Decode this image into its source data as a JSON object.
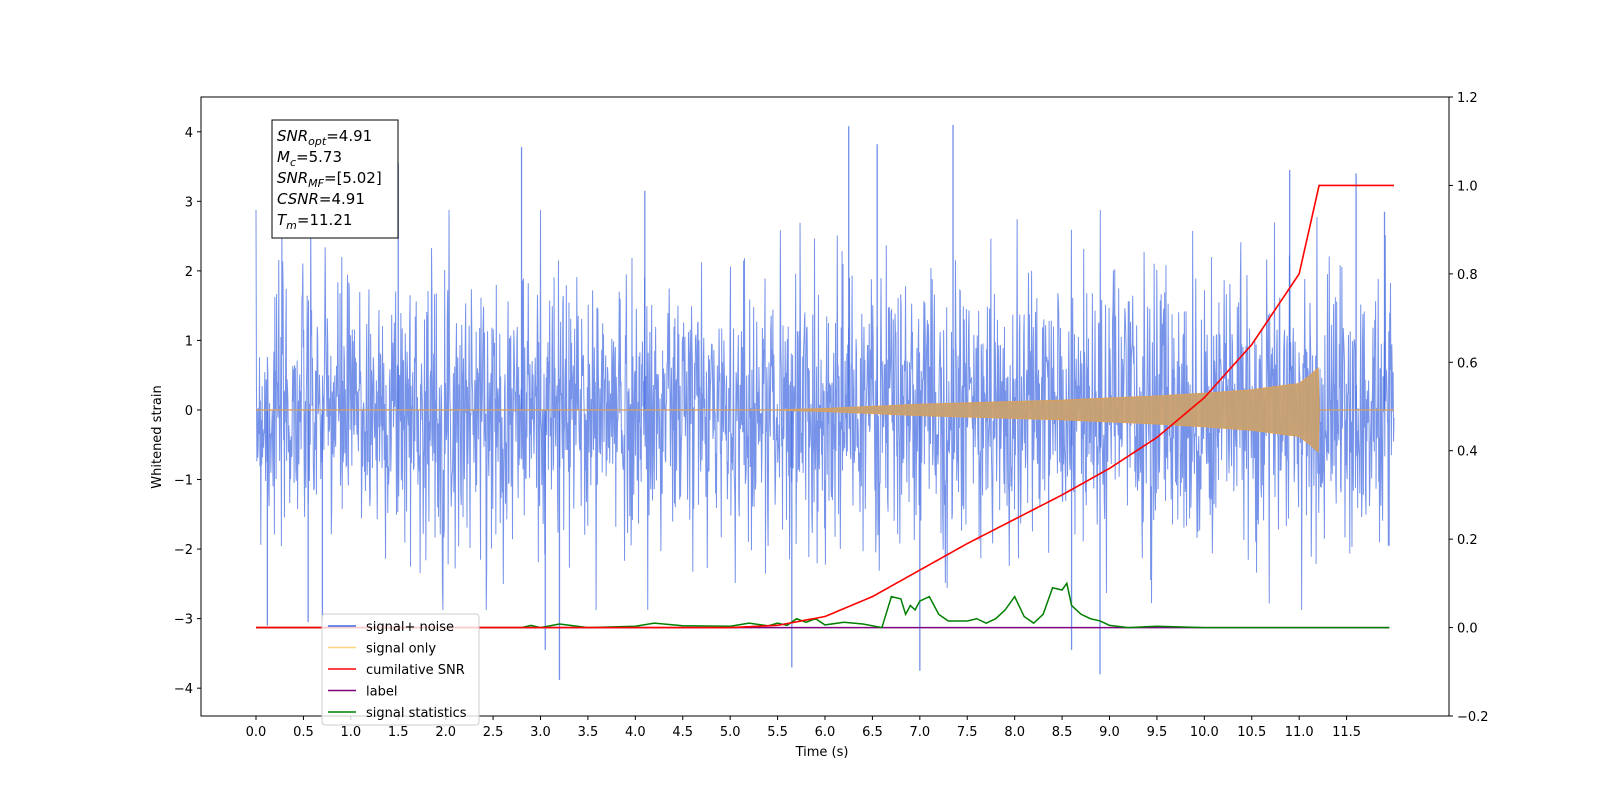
{
  "chart_data": {
    "type": "line",
    "xlabel": "Time (s)",
    "ylabel": "Whitened strain",
    "xlim": [
      -0.58,
      12.58
    ],
    "ylim": [
      -4.4,
      4.5
    ],
    "y2lim": [
      -0.2,
      1.2
    ],
    "xticks": [
      "0.0",
      "0.5",
      "1.0",
      "1.5",
      "2.0",
      "2.5",
      "3.0",
      "3.5",
      "4.0",
      "4.5",
      "5.0",
      "5.5",
      "6.0",
      "6.5",
      "7.0",
      "7.5",
      "8.0",
      "8.5",
      "9.0",
      "9.5",
      "10.0",
      "10.5",
      "11.0",
      "11.5"
    ],
    "yticks": [
      "4",
      "3",
      "2",
      "1",
      "0",
      "−1",
      "−2",
      "−3",
      "−4"
    ],
    "y2ticks": [
      "1.2",
      "1.0",
      "0.8",
      "0.6",
      "0.4",
      "0.2",
      "0.0",
      "−0.2"
    ],
    "info_box": {
      "lines": [
        {
          "main": "SNR",
          "sub": "opt",
          "rest": "=4.91"
        },
        {
          "main": "M",
          "sub": "c",
          "rest": "=5.73"
        },
        {
          "main": "SNR",
          "sub": "MF",
          "rest": "=[5.02]"
        },
        {
          "main": "CSNR",
          "sub": "",
          "rest": "=4.91"
        },
        {
          "main": "T",
          "sub": "m",
          "rest": "=11.21"
        }
      ]
    },
    "legend": {
      "placement": "lower-left",
      "entries": [
        {
          "label": "signal+ noise",
          "color": "#4169e1"
        },
        {
          "label": "signal only",
          "color": "#ffa500"
        },
        {
          "label": "cumilative SNR",
          "color": "#ff0000"
        },
        {
          "label": "label",
          "color": "#800080"
        },
        {
          "label": "signal statistics",
          "color": "#008000"
        }
      ]
    },
    "series": [
      {
        "name": "signal+ noise",
        "axis": "left",
        "color": "#4169e1",
        "t_range": [
          0.0,
          12.0
        ],
        "envelope_typical": 2.5,
        "extreme_values": [
          [
            0.12,
            -3.1
          ],
          [
            0.55,
            -3.05
          ],
          [
            0.7,
            -3.0
          ],
          [
            1.5,
            3.55
          ],
          [
            2.8,
            3.78
          ],
          [
            3.05,
            -3.45
          ],
          [
            3.2,
            -3.88
          ],
          [
            4.1,
            3.15
          ],
          [
            5.65,
            -3.7
          ],
          [
            6.25,
            4.08
          ],
          [
            6.55,
            3.82
          ],
          [
            7.0,
            -3.75
          ],
          [
            7.35,
            4.1
          ],
          [
            8.6,
            -3.45
          ],
          [
            8.9,
            -3.8
          ],
          [
            10.9,
            3.45
          ],
          [
            11.6,
            3.4
          ],
          [
            11.9,
            2.85
          ]
        ]
      },
      {
        "name": "signal only",
        "axis": "left",
        "color": "#ffa500",
        "t": [
          0.0,
          5.5,
          6.0,
          6.5,
          7.0,
          7.5,
          8.0,
          8.5,
          9.0,
          9.5,
          10.0,
          10.5,
          11.0,
          11.1,
          11.2,
          11.21,
          11.25,
          12.0
        ],
        "amplitude": [
          0.0,
          0.0,
          0.02,
          0.05,
          0.08,
          0.1,
          0.12,
          0.14,
          0.17,
          0.2,
          0.24,
          0.29,
          0.38,
          0.48,
          0.6,
          0.0,
          0.0,
          0.0
        ]
      },
      {
        "name": "cumilative SNR",
        "axis": "right",
        "color": "#ff0000",
        "x": [
          0.0,
          5.0,
          5.5,
          6.0,
          6.5,
          7.0,
          7.5,
          8.0,
          8.5,
          9.0,
          9.5,
          10.0,
          10.5,
          11.0,
          11.21,
          12.0
        ],
        "y": [
          0.0,
          0.0,
          0.005,
          0.025,
          0.07,
          0.13,
          0.19,
          0.245,
          0.3,
          0.36,
          0.43,
          0.52,
          0.64,
          0.8,
          1.0,
          1.0
        ]
      },
      {
        "name": "label",
        "axis": "right",
        "color": "#800080",
        "x": [
          0.0,
          11.95
        ],
        "y": [
          0.0,
          0.0
        ]
      },
      {
        "name": "signal statistics",
        "axis": "right",
        "color": "#008000",
        "x": [
          0.0,
          2.8,
          2.9,
          3.0,
          3.2,
          3.5,
          4.0,
          4.2,
          4.5,
          5.0,
          5.2,
          5.4,
          5.5,
          5.6,
          5.7,
          5.8,
          5.9,
          6.0,
          6.2,
          6.4,
          6.6,
          6.7,
          6.8,
          6.85,
          6.9,
          6.95,
          7.0,
          7.1,
          7.2,
          7.3,
          7.5,
          7.6,
          7.7,
          7.8,
          7.9,
          8.0,
          8.1,
          8.2,
          8.3,
          8.4,
          8.5,
          8.55,
          8.6,
          8.7,
          8.8,
          8.9,
          9.0,
          9.2,
          9.5,
          10.0,
          11.0,
          11.95
        ],
        "y": [
          0.0,
          0.0,
          0.005,
          0.0,
          0.008,
          0.0,
          0.003,
          0.01,
          0.004,
          0.003,
          0.01,
          0.004,
          0.01,
          0.005,
          0.02,
          0.012,
          0.02,
          0.006,
          0.012,
          0.008,
          0.0,
          0.07,
          0.065,
          0.03,
          0.05,
          0.04,
          0.06,
          0.07,
          0.03,
          0.015,
          0.015,
          0.02,
          0.01,
          0.02,
          0.04,
          0.07,
          0.025,
          0.01,
          0.03,
          0.09,
          0.085,
          0.1,
          0.05,
          0.03,
          0.02,
          0.015,
          0.005,
          0.0,
          0.003,
          0.0,
          0.0,
          0.0
        ]
      }
    ]
  }
}
